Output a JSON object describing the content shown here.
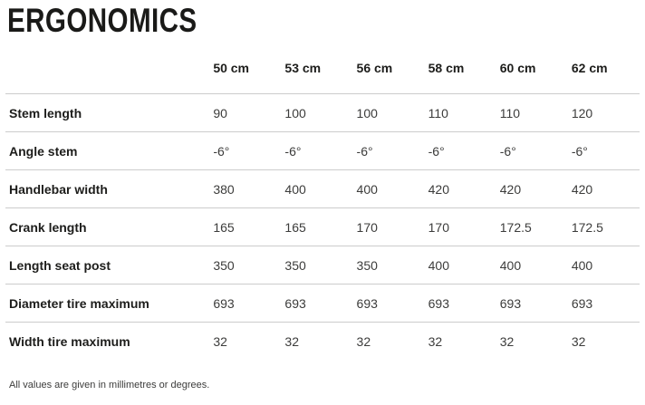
{
  "page_title": "ERGONOMICS",
  "table": {
    "columns": [
      "",
      "50 cm",
      "53 cm",
      "56 cm",
      "58 cm",
      "60 cm",
      "62 cm"
    ],
    "rows": [
      {
        "label": "Stem length",
        "values": [
          "90",
          "100",
          "100",
          "110",
          "110",
          "120"
        ]
      },
      {
        "label": "Angle stem",
        "values": [
          "-6°",
          "-6°",
          "-6°",
          "-6°",
          "-6°",
          "-6°"
        ]
      },
      {
        "label": "Handlebar width",
        "values": [
          "380",
          "400",
          "400",
          "420",
          "420",
          "420"
        ]
      },
      {
        "label": "Crank length",
        "values": [
          "165",
          "165",
          "170",
          "170",
          "172.5",
          "172.5"
        ]
      },
      {
        "label": "Length seat post",
        "values": [
          "350",
          "350",
          "350",
          "400",
          "400",
          "400"
        ]
      },
      {
        "label": "Diameter tire maximum",
        "values": [
          "693",
          "693",
          "693",
          "693",
          "693",
          "693"
        ]
      },
      {
        "label": "Width tire maximum",
        "values": [
          "32",
          "32",
          "32",
          "32",
          "32",
          "32"
        ]
      }
    ]
  },
  "footer_note": "All values are given in millimetres or degrees.",
  "colors": {
    "heading_text": "#1a1a18",
    "label_text": "#1d1d1b",
    "value_text": "#3c3c3b",
    "divider": "#cccccc",
    "background": "#ffffff"
  }
}
